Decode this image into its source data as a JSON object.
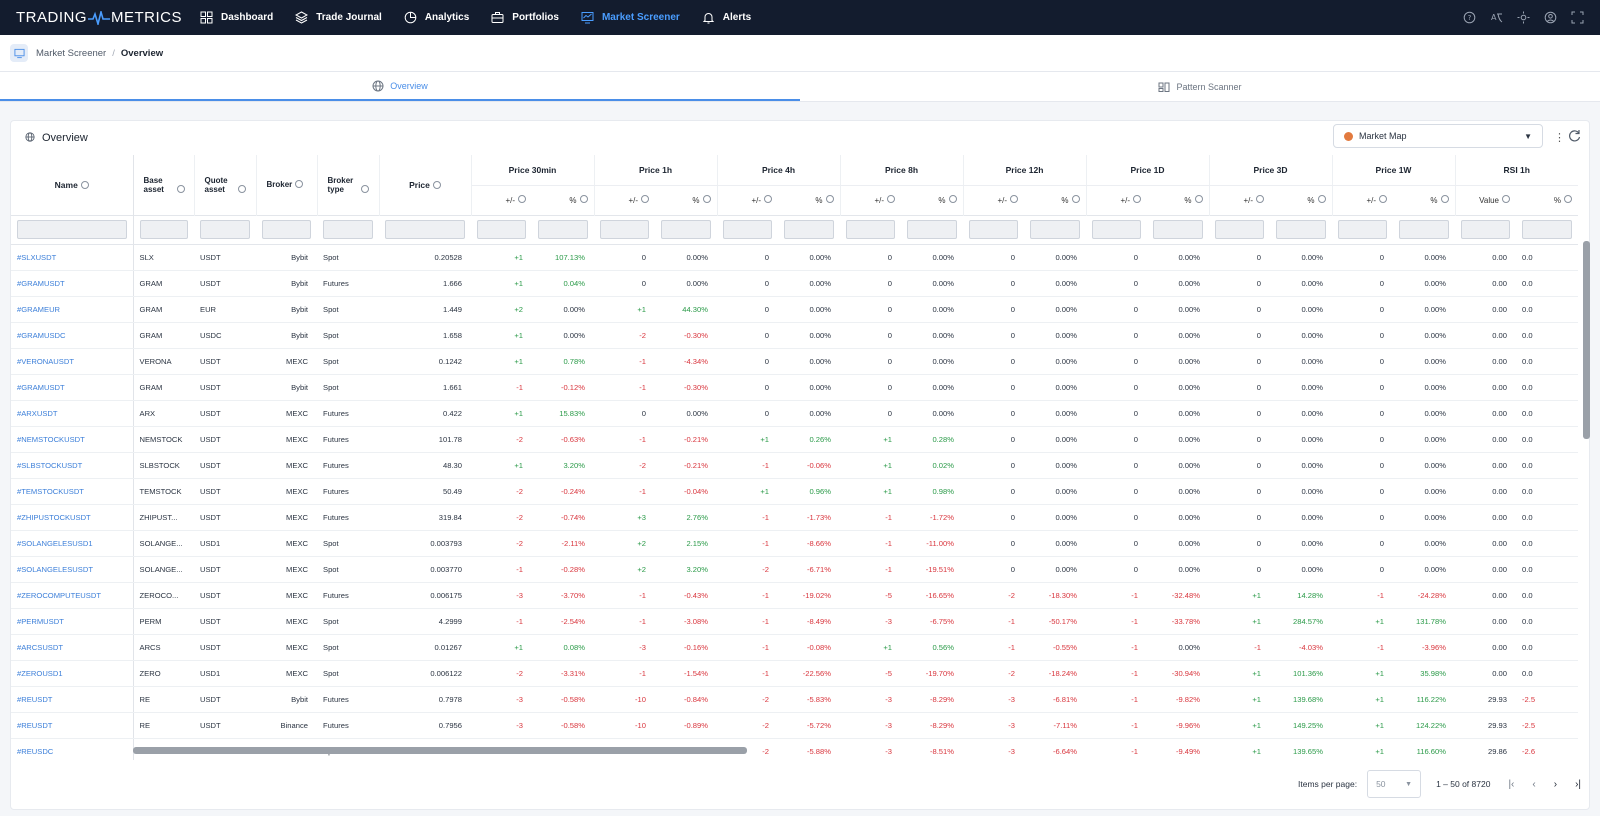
{
  "nav": {
    "logo_left": "TRADING",
    "logo_right": "METRICS",
    "items": [
      {
        "label": "Dashboard",
        "icon": "grid-icon"
      },
      {
        "label": "Trade Journal",
        "icon": "layers-icon"
      },
      {
        "label": "Analytics",
        "icon": "pie-chart-icon"
      },
      {
        "label": "Portfolios",
        "icon": "briefcase-icon"
      },
      {
        "label": "Market Screener",
        "icon": "screener-icon",
        "active": true
      },
      {
        "label": "Alerts",
        "icon": "bell-icon"
      }
    ]
  },
  "breadcrumb": {
    "first": "Market Screener",
    "separator": "/",
    "current": "Overview"
  },
  "tabs": [
    {
      "label": "Overview",
      "icon": "globe-icon",
      "active": true
    },
    {
      "label": "Pattern Scanner",
      "icon": "pattern-icon"
    }
  ],
  "card": {
    "title": "Overview",
    "map_select": "Market Map"
  },
  "table": {
    "static_headers": {
      "name": "Name",
      "base": "Base asset",
      "quote": "Quote asset",
      "broker": "Broker",
      "broker_type": "Broker type",
      "price": "Price"
    },
    "groups": [
      "Price 30min",
      "Price 1h",
      "Price 4h",
      "Price 8h",
      "Price 12h",
      "Price 1D",
      "Price 3D",
      "Price 1W",
      "RSI 1h"
    ],
    "subheaders": {
      "delta": "+/-",
      "pct": "%",
      "value": "Value"
    },
    "rows": [
      {
        "name": "#SLXUSDT",
        "base": "SLX",
        "quote": "USDT",
        "broker": "Bybit",
        "type": "Spot",
        "price": "0.20528",
        "changes": [
          [
            "+1",
            "107.13%"
          ],
          [
            "0",
            "0.00%"
          ],
          [
            "0",
            "0.00%"
          ],
          [
            "0",
            "0.00%"
          ],
          [
            "0",
            "0.00%"
          ],
          [
            "0",
            "0.00%"
          ],
          [
            "0",
            "0.00%"
          ],
          [
            "0",
            "0.00%"
          ]
        ],
        "rsi": "0.00",
        "rsi_pct": "0.0"
      },
      {
        "name": "#GRAMUSDT",
        "base": "GRAM",
        "quote": "USDT",
        "broker": "Bybit",
        "type": "Futures",
        "price": "1.666",
        "changes": [
          [
            "+1",
            "0.04%"
          ],
          [
            "0",
            "0.00%"
          ],
          [
            "0",
            "0.00%"
          ],
          [
            "0",
            "0.00%"
          ],
          [
            "0",
            "0.00%"
          ],
          [
            "0",
            "0.00%"
          ],
          [
            "0",
            "0.00%"
          ],
          [
            "0",
            "0.00%"
          ]
        ],
        "rsi": "0.00",
        "rsi_pct": "0.0"
      },
      {
        "name": "#GRAMEUR",
        "base": "GRAM",
        "quote": "EUR",
        "broker": "Bybit",
        "type": "Spot",
        "price": "1.449",
        "changes": [
          [
            "+2",
            "0.00%"
          ],
          [
            "+1",
            "44.30%"
          ],
          [
            "0",
            "0.00%"
          ],
          [
            "0",
            "0.00%"
          ],
          [
            "0",
            "0.00%"
          ],
          [
            "0",
            "0.00%"
          ],
          [
            "0",
            "0.00%"
          ],
          [
            "0",
            "0.00%"
          ]
        ],
        "rsi": "0.00",
        "rsi_pct": "0.0"
      },
      {
        "name": "#GRAMUSDC",
        "base": "GRAM",
        "quote": "USDC",
        "broker": "Bybit",
        "type": "Spot",
        "price": "1.658",
        "changes": [
          [
            "+1",
            "0.00%"
          ],
          [
            "-2",
            "-0.30%"
          ],
          [
            "0",
            "0.00%"
          ],
          [
            "0",
            "0.00%"
          ],
          [
            "0",
            "0.00%"
          ],
          [
            "0",
            "0.00%"
          ],
          [
            "0",
            "0.00%"
          ],
          [
            "0",
            "0.00%"
          ]
        ],
        "rsi": "0.00",
        "rsi_pct": "0.0"
      },
      {
        "name": "#VERONAUSDT",
        "base": "VERONA",
        "quote": "USDT",
        "broker": "MEXC",
        "type": "Spot",
        "price": "0.1242",
        "changes": [
          [
            "+1",
            "0.78%"
          ],
          [
            "-1",
            "-4.34%"
          ],
          [
            "0",
            "0.00%"
          ],
          [
            "0",
            "0.00%"
          ],
          [
            "0",
            "0.00%"
          ],
          [
            "0",
            "0.00%"
          ],
          [
            "0",
            "0.00%"
          ],
          [
            "0",
            "0.00%"
          ]
        ],
        "rsi": "0.00",
        "rsi_pct": "0.0"
      },
      {
        "name": "#GRAMUSDT",
        "base": "GRAM",
        "quote": "USDT",
        "broker": "Bybit",
        "type": "Spot",
        "price": "1.661",
        "changes": [
          [
            "-1",
            "-0.12%"
          ],
          [
            "-1",
            "-0.30%"
          ],
          [
            "0",
            "0.00%"
          ],
          [
            "0",
            "0.00%"
          ],
          [
            "0",
            "0.00%"
          ],
          [
            "0",
            "0.00%"
          ],
          [
            "0",
            "0.00%"
          ],
          [
            "0",
            "0.00%"
          ]
        ],
        "rsi": "0.00",
        "rsi_pct": "0.0"
      },
      {
        "name": "#ARXUSDT",
        "base": "ARX",
        "quote": "USDT",
        "broker": "MEXC",
        "type": "Futures",
        "price": "0.422",
        "changes": [
          [
            "+1",
            "15.83%"
          ],
          [
            "0",
            "0.00%"
          ],
          [
            "0",
            "0.00%"
          ],
          [
            "0",
            "0.00%"
          ],
          [
            "0",
            "0.00%"
          ],
          [
            "0",
            "0.00%"
          ],
          [
            "0",
            "0.00%"
          ],
          [
            "0",
            "0.00%"
          ]
        ],
        "rsi": "0.00",
        "rsi_pct": "0.0"
      },
      {
        "name": "#NEMSTOCKUSDT",
        "base": "NEMSTOCK",
        "quote": "USDT",
        "broker": "MEXC",
        "type": "Futures",
        "price": "101.78",
        "changes": [
          [
            "-2",
            "-0.63%"
          ],
          [
            "-1",
            "-0.21%"
          ],
          [
            "+1",
            "0.26%"
          ],
          [
            "+1",
            "0.28%"
          ],
          [
            "0",
            "0.00%"
          ],
          [
            "0",
            "0.00%"
          ],
          [
            "0",
            "0.00%"
          ],
          [
            "0",
            "0.00%"
          ]
        ],
        "rsi": "0.00",
        "rsi_pct": "0.0"
      },
      {
        "name": "#SLBSTOCKUSDT",
        "base": "SLBSTOCK",
        "quote": "USDT",
        "broker": "MEXC",
        "type": "Futures",
        "price": "48.30",
        "changes": [
          [
            "+1",
            "3.20%"
          ],
          [
            "-2",
            "-0.21%"
          ],
          [
            "-1",
            "-0.06%"
          ],
          [
            "+1",
            "0.02%"
          ],
          [
            "0",
            "0.00%"
          ],
          [
            "0",
            "0.00%"
          ],
          [
            "0",
            "0.00%"
          ],
          [
            "0",
            "0.00%"
          ]
        ],
        "rsi": "0.00",
        "rsi_pct": "0.0"
      },
      {
        "name": "#TEMSTOCKUSDT",
        "base": "TEMSTOCK",
        "quote": "USDT",
        "broker": "MEXC",
        "type": "Futures",
        "price": "50.49",
        "changes": [
          [
            "-2",
            "-0.24%"
          ],
          [
            "-1",
            "-0.04%"
          ],
          [
            "+1",
            "0.96%"
          ],
          [
            "+1",
            "0.98%"
          ],
          [
            "0",
            "0.00%"
          ],
          [
            "0",
            "0.00%"
          ],
          [
            "0",
            "0.00%"
          ],
          [
            "0",
            "0.00%"
          ]
        ],
        "rsi": "0.00",
        "rsi_pct": "0.0"
      },
      {
        "name": "#ZHIPUSTOCKUSDT",
        "base": "ZHIPUST...",
        "quote": "USDT",
        "broker": "MEXC",
        "type": "Futures",
        "price": "319.84",
        "changes": [
          [
            "-2",
            "-0.74%"
          ],
          [
            "+3",
            "2.76%"
          ],
          [
            "-1",
            "-1.73%"
          ],
          [
            "-1",
            "-1.72%"
          ],
          [
            "0",
            "0.00%"
          ],
          [
            "0",
            "0.00%"
          ],
          [
            "0",
            "0.00%"
          ],
          [
            "0",
            "0.00%"
          ]
        ],
        "rsi": "0.00",
        "rsi_pct": "0.0"
      },
      {
        "name": "#SOLANGELESUSD1",
        "base": "SOLANGE...",
        "quote": "USD1",
        "broker": "MEXC",
        "type": "Spot",
        "price": "0.003793",
        "changes": [
          [
            "-2",
            "-2.11%"
          ],
          [
            "+2",
            "2.15%"
          ],
          [
            "-1",
            "-8.66%"
          ],
          [
            "-1",
            "-11.00%"
          ],
          [
            "0",
            "0.00%"
          ],
          [
            "0",
            "0.00%"
          ],
          [
            "0",
            "0.00%"
          ],
          [
            "0",
            "0.00%"
          ]
        ],
        "rsi": "0.00",
        "rsi_pct": "0.0"
      },
      {
        "name": "#SOLANGELESUSDT",
        "base": "SOLANGE...",
        "quote": "USDT",
        "broker": "MEXC",
        "type": "Spot",
        "price": "0.003770",
        "changes": [
          [
            "-1",
            "-0.28%"
          ],
          [
            "+2",
            "3.20%"
          ],
          [
            "-2",
            "-6.71%"
          ],
          [
            "-1",
            "-19.51%"
          ],
          [
            "0",
            "0.00%"
          ],
          [
            "0",
            "0.00%"
          ],
          [
            "0",
            "0.00%"
          ],
          [
            "0",
            "0.00%"
          ]
        ],
        "rsi": "0.00",
        "rsi_pct": "0.0"
      },
      {
        "name": "#ZEROCOMPUTEUSDT",
        "base": "ZEROCO...",
        "quote": "USDT",
        "broker": "MEXC",
        "type": "Futures",
        "price": "0.006175",
        "changes": [
          [
            "-3",
            "-3.70%"
          ],
          [
            "-1",
            "-0.43%"
          ],
          [
            "-1",
            "-19.02%"
          ],
          [
            "-5",
            "-16.65%"
          ],
          [
            "-2",
            "-18.30%"
          ],
          [
            "-1",
            "-32.48%"
          ],
          [
            "+1",
            "14.28%"
          ],
          [
            "-1",
            "-24.28%"
          ]
        ],
        "rsi": "0.00",
        "rsi_pct": "0.0"
      },
      {
        "name": "#PERMUSDT",
        "base": "PERM",
        "quote": "USDT",
        "broker": "MEXC",
        "type": "Spot",
        "price": "4.2999",
        "changes": [
          [
            "-1",
            "-2.54%"
          ],
          [
            "-1",
            "-3.08%"
          ],
          [
            "-1",
            "-8.49%"
          ],
          [
            "-3",
            "-6.75%"
          ],
          [
            "-1",
            "-50.17%"
          ],
          [
            "-1",
            "-33.78%"
          ],
          [
            "+1",
            "284.57%"
          ],
          [
            "+1",
            "131.78%"
          ]
        ],
        "rsi": "0.00",
        "rsi_pct": "0.0"
      },
      {
        "name": "#ARCSUSDT",
        "base": "ARCS",
        "quote": "USDT",
        "broker": "MEXC",
        "type": "Spot",
        "price": "0.01267",
        "changes": [
          [
            "+1",
            "0.08%"
          ],
          [
            "-3",
            "-0.16%"
          ],
          [
            "-1",
            "-0.08%"
          ],
          [
            "+1",
            "0.56%"
          ],
          [
            "-1",
            "-0.55%"
          ],
          [
            "-1",
            "0.00%"
          ],
          [
            "-1",
            "-4.03%"
          ],
          [
            "-1",
            "-3.96%"
          ]
        ],
        "rsi": "0.00",
        "rsi_pct": "0.0"
      },
      {
        "name": "#ZEROUSD1",
        "base": "ZERO",
        "quote": "USD1",
        "broker": "MEXC",
        "type": "Spot",
        "price": "0.006122",
        "changes": [
          [
            "-2",
            "-3.31%"
          ],
          [
            "-1",
            "-1.54%"
          ],
          [
            "-1",
            "-22.56%"
          ],
          [
            "-5",
            "-19.70%"
          ],
          [
            "-2",
            "-18.24%"
          ],
          [
            "-1",
            "-30.94%"
          ],
          [
            "+1",
            "101.36%"
          ],
          [
            "+1",
            "35.98%"
          ]
        ],
        "rsi": "0.00",
        "rsi_pct": "0.0"
      },
      {
        "name": "#REUSDT",
        "base": "RE",
        "quote": "USDT",
        "broker": "Bybit",
        "type": "Futures",
        "price": "0.7978",
        "changes": [
          [
            "-3",
            "-0.58%"
          ],
          [
            "-10",
            "-0.84%"
          ],
          [
            "-2",
            "-5.83%"
          ],
          [
            "-3",
            "-8.29%"
          ],
          [
            "-3",
            "-6.81%"
          ],
          [
            "-1",
            "-9.82%"
          ],
          [
            "+1",
            "139.68%"
          ],
          [
            "+1",
            "116.22%"
          ]
        ],
        "rsi": "29.93",
        "rsi_pct": "-2.5"
      },
      {
        "name": "#REUSDT",
        "base": "RE",
        "quote": "USDT",
        "broker": "Binance",
        "type": "Futures",
        "price": "0.7956",
        "changes": [
          [
            "-3",
            "-0.58%"
          ],
          [
            "-10",
            "-0.89%"
          ],
          [
            "-2",
            "-5.72%"
          ],
          [
            "-3",
            "-8.29%"
          ],
          [
            "-3",
            "-7.11%"
          ],
          [
            "-1",
            "-9.96%"
          ],
          [
            "+1",
            "149.25%"
          ],
          [
            "+1",
            "124.22%"
          ]
        ],
        "rsi": "29.93",
        "rsi_pct": "-2.5"
      },
      {
        "name": "#REUSDC",
        "base": "RE",
        "quote": "USDC",
        "broker": "Binance",
        "type": "Spot",
        "price": "0.7992",
        "changes": [
          [
            "-3",
            "-0.71%"
          ],
          [
            "-10",
            "-0.92%"
          ],
          [
            "-2",
            "-5.88%"
          ],
          [
            "-3",
            "-8.51%"
          ],
          [
            "-3",
            "-6.64%"
          ],
          [
            "-1",
            "-9.49%"
          ],
          [
            "+1",
            "139.65%"
          ],
          [
            "+1",
            "116.60%"
          ]
        ],
        "rsi": "29.86",
        "rsi_pct": "-2.6"
      }
    ]
  },
  "footer": {
    "items_per_page_label": "Items per page:",
    "per_page": "50",
    "range": "1 – 50 of 8720"
  },
  "colors": {
    "nav_bg": "#131c2e",
    "accent": "#4a8ee8",
    "positive": "#2a9a48",
    "negative": "#d9363e"
  }
}
